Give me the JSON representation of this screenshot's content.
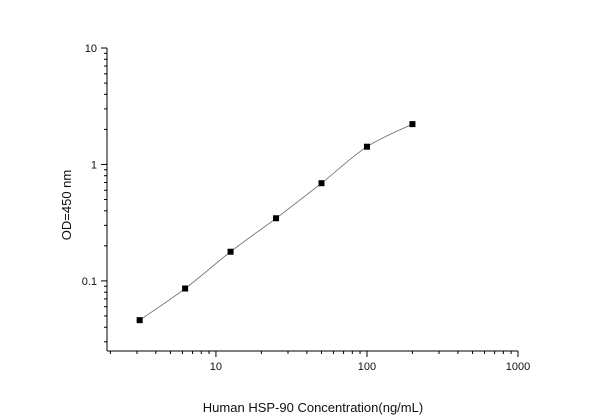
{
  "chart_data": {
    "type": "scatter",
    "title": "",
    "xlabel": "Human HSP-90  Concentration(ng/mL)",
    "ylabel": "OD=450 nm",
    "x_scale": "log",
    "y_scale": "log",
    "xlim": [
      1.9,
      1000
    ],
    "ylim": [
      0.025,
      10
    ],
    "x_ticks": [
      {
        "value": 10,
        "label": "10"
      },
      {
        "value": 100,
        "label": "100"
      },
      {
        "value": 1000,
        "label": "1000"
      }
    ],
    "y_ticks": [
      {
        "value": 0.1,
        "label": "0.1"
      },
      {
        "value": 1,
        "label": "1"
      },
      {
        "value": 10,
        "label": "10"
      }
    ],
    "grid": false,
    "legend": "none",
    "series": [
      {
        "marker": "square",
        "color": "#000000",
        "line_color": "#666666",
        "points": [
          {
            "x": 3.125,
            "y": 0.046
          },
          {
            "x": 6.25,
            "y": 0.086
          },
          {
            "x": 12.5,
            "y": 0.178
          },
          {
            "x": 25,
            "y": 0.345
          },
          {
            "x": 50,
            "y": 0.69
          },
          {
            "x": 100,
            "y": 1.42
          },
          {
            "x": 200,
            "y": 2.22
          }
        ]
      }
    ]
  }
}
